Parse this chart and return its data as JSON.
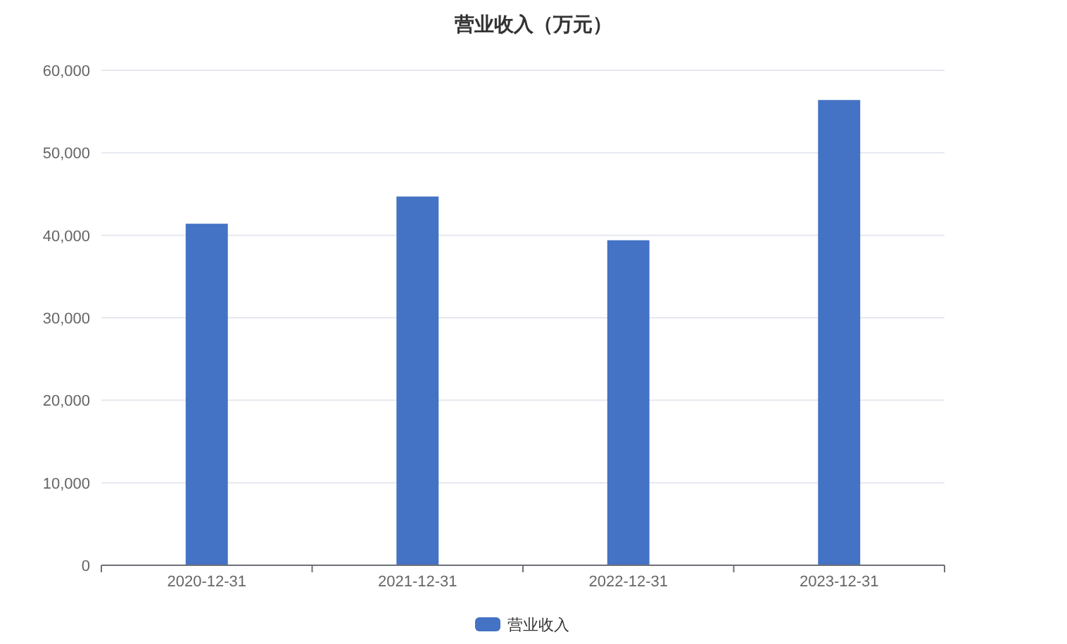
{
  "chart_data": {
    "type": "bar",
    "title": "营业收入（万元）",
    "categories": [
      "2020-12-31",
      "2021-12-31",
      "2022-12-31",
      "2023-12-31"
    ],
    "series": [
      {
        "name": "营业收入",
        "color": "#4472c4",
        "values": [
          41400,
          44700,
          39400,
          56400
        ]
      }
    ],
    "ylim": [
      0,
      60000
    ],
    "yticks": [
      {
        "value": 0,
        "label": "0"
      },
      {
        "value": 10000,
        "label": "10,000"
      },
      {
        "value": 20000,
        "label": "20,000"
      },
      {
        "value": 30000,
        "label": "30,000"
      },
      {
        "value": 40000,
        "label": "40,000"
      },
      {
        "value": 50000,
        "label": "50,000"
      },
      {
        "value": 60000,
        "label": "60,000"
      }
    ],
    "grid": "y",
    "legend": "bottom"
  }
}
